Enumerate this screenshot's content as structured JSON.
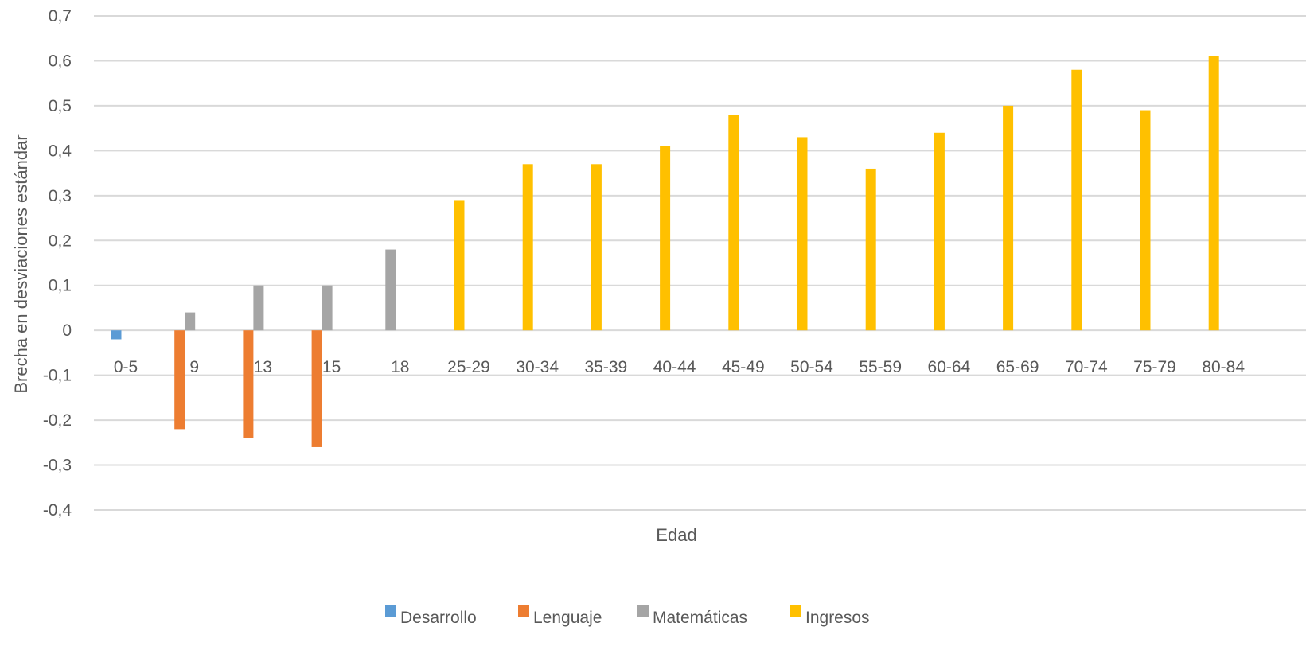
{
  "chart_data": {
    "type": "bar",
    "xlabel": "Edad",
    "ylabel": "Brecha  en  desviaciones  estándar",
    "ylim": [
      -0.4,
      0.7
    ],
    "yticks": [
      0.7,
      0.6,
      0.5,
      0.4,
      0.3,
      0.2,
      0.1,
      0,
      -0.1,
      -0.2,
      -0.3,
      -0.4
    ],
    "ytick_labels": [
      "0,7",
      "0,6",
      "0,5",
      "0,4",
      "0,3",
      "0,2",
      "0,1",
      "0",
      "-0,1",
      "-0,2",
      "-0,3",
      "-0,4"
    ],
    "grid": true,
    "legend_position": "bottom",
    "categories": [
      "0-5",
      "9",
      "13",
      "15",
      "18",
      "25-29",
      "30-34",
      "35-39",
      "40-44",
      "45-49",
      "50-54",
      "55-59",
      "60-64",
      "65-69",
      "70-74",
      "75-79",
      "80-84"
    ],
    "series": [
      {
        "name": "Desarrollo",
        "color": "#5B9BD5",
        "values": [
          -0.02,
          null,
          null,
          null,
          null,
          null,
          null,
          null,
          null,
          null,
          null,
          null,
          null,
          null,
          null,
          null,
          null
        ]
      },
      {
        "name": "Lenguaje",
        "color": "#ED7D31",
        "values": [
          null,
          -0.22,
          -0.24,
          -0.26,
          null,
          null,
          null,
          null,
          null,
          null,
          null,
          null,
          null,
          null,
          null,
          null,
          null
        ]
      },
      {
        "name": "Matemáticas",
        "color": "#A5A5A5",
        "values": [
          null,
          0.04,
          0.1,
          0.1,
          0.18,
          null,
          null,
          null,
          null,
          null,
          null,
          null,
          null,
          null,
          null,
          null,
          null
        ]
      },
      {
        "name": "Ingresos",
        "color": "#FFC000",
        "values": [
          null,
          null,
          null,
          null,
          null,
          0.29,
          0.37,
          0.37,
          0.41,
          0.48,
          0.43,
          0.36,
          0.44,
          0.5,
          0.58,
          0.49,
          0.61
        ]
      }
    ]
  }
}
